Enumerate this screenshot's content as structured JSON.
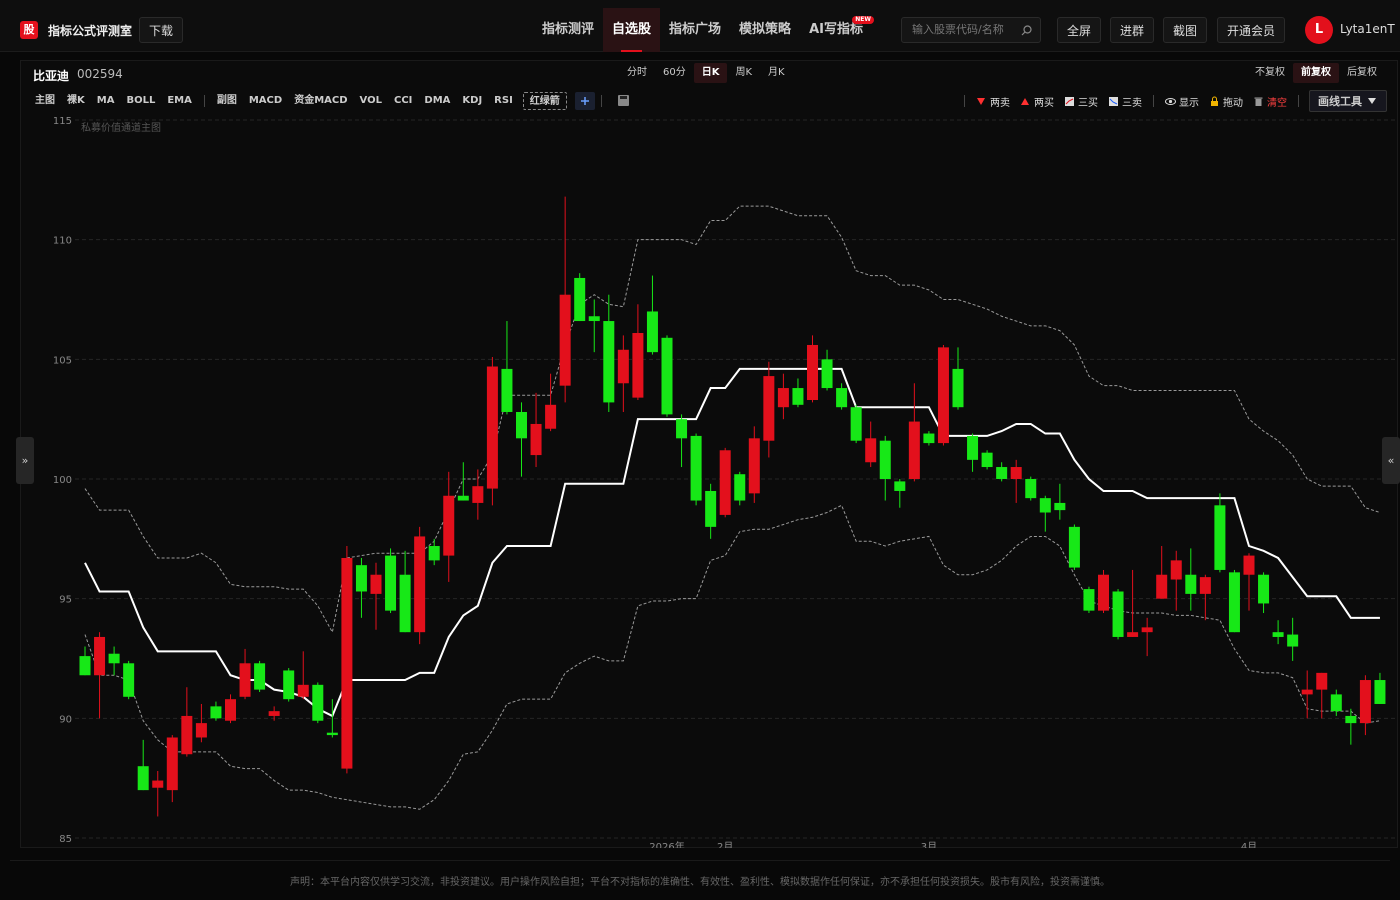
{
  "header": {
    "logo": "股",
    "site_name": "指标公式评测室",
    "download": "下载",
    "nav": [
      "指标测评",
      "自选股",
      "指标广场",
      "模拟策略",
      "AI写指标"
    ],
    "active_nav": 1,
    "new_badge": "NEW",
    "search_placeholder": "输入股票代码/名称",
    "buttons": [
      "全屏",
      "进群",
      "截图",
      "开通会员"
    ],
    "avatar": "L",
    "username": "Lyta1enT"
  },
  "stock": {
    "name": "比亚迪",
    "code": "002594",
    "periods": [
      "分时",
      "60分",
      "日K",
      "周K",
      "月K"
    ],
    "active_period": 2,
    "adjust": [
      "不复权",
      "前复权",
      "后复权"
    ],
    "active_adjust": 1
  },
  "toolbar": {
    "main_label": "主图",
    "main": [
      "裸K",
      "MA",
      "BOLL",
      "EMA"
    ],
    "sub_label": "副图",
    "sub": [
      "MACD",
      "资金MACD",
      "VOL",
      "CCI",
      "DMA",
      "KDJ",
      "RSI",
      "红绿箭"
    ],
    "signals": [
      "两卖",
      "两买",
      "三买",
      "三卖"
    ],
    "controls": [
      "显示",
      "拖动",
      "清空"
    ],
    "draw_tool": "画线工具"
  },
  "side": {
    "left": "»",
    "right": "«"
  },
  "chart_data": {
    "type": "candlestick",
    "title": "私募价值通道主图",
    "categories": [
      null,
      null,
      null,
      null,
      null,
      null,
      null,
      null,
      null,
      null,
      null,
      null,
      null,
      null,
      null,
      null,
      null,
      null,
      null,
      null,
      null,
      null,
      null,
      null,
      null,
      null,
      null,
      null,
      null,
      null,
      null,
      null,
      null,
      null,
      null,
      null,
      null,
      null,
      null,
      null,
      "2026年",
      null,
      null,
      null,
      "2月",
      null,
      null,
      null,
      null,
      null,
      null,
      null,
      null,
      null,
      null,
      null,
      null,
      null,
      "3月",
      null,
      null,
      null,
      null,
      null,
      null,
      null,
      null,
      null,
      null,
      null,
      null,
      null,
      null,
      null,
      null,
      null,
      null,
      null,
      null,
      null,
      "4月",
      null,
      null,
      null,
      null,
      null,
      null,
      null,
      null,
      null
    ],
    "open": [
      92.6,
      91.8,
      92.7,
      92.3,
      88.0,
      87.1,
      87.0,
      88.5,
      89.2,
      90.5,
      89.9,
      90.9,
      92.3,
      90.1,
      92.0,
      90.9,
      91.4,
      89.4,
      87.9,
      96.4,
      95.2,
      96.8,
      96.0,
      93.6,
      97.2,
      96.8,
      99.3,
      99.0,
      99.6,
      104.6,
      102.8,
      101.0,
      102.1,
      103.9,
      108.4,
      106.8,
      106.6,
      104.0,
      103.4,
      107.0,
      105.9,
      102.5,
      101.8,
      99.5,
      98.5,
      100.2,
      99.4,
      101.6,
      103.0,
      103.8,
      103.3,
      105.0,
      103.8,
      103.0,
      100.7,
      101.6,
      99.9,
      100.0,
      101.9,
      101.5,
      104.6,
      101.8,
      101.1,
      100.5,
      100.0,
      100.0,
      99.2,
      99.0,
      98.0,
      95.4,
      94.5,
      95.3,
      93.4,
      93.6,
      95.0,
      95.8,
      96.0,
      95.2,
      98.9,
      96.1,
      96.0,
      96.0,
      93.6,
      93.5,
      91.0,
      91.2,
      91.0,
      90.1,
      89.8,
      91.6
    ],
    "high": [
      93.0,
      93.6,
      93.0,
      92.4,
      89.1,
      87.8,
      89.3,
      91.3,
      90.6,
      90.7,
      91.0,
      92.9,
      92.4,
      90.5,
      92.1,
      92.8,
      91.5,
      90.8,
      97.2,
      96.7,
      96.5,
      97.1,
      97.0,
      98.0,
      97.5,
      100.3,
      100.7,
      100.4,
      105.1,
      106.6,
      103.2,
      103.6,
      104.4,
      111.8,
      108.6,
      107.5,
      107.7,
      106.0,
      107.3,
      108.5,
      106.0,
      102.7,
      101.9,
      99.8,
      101.3,
      100.3,
      102.2,
      104.9,
      104.4,
      104.2,
      106.0,
      105.4,
      104.0,
      103.1,
      102.4,
      101.8,
      100.0,
      104.0,
      102.0,
      105.6,
      105.5,
      101.9,
      101.2,
      100.7,
      100.8,
      100.1,
      99.3,
      99.8,
      98.1,
      95.5,
      96.2,
      95.4,
      96.2,
      94.2,
      97.2,
      97.0,
      97.1,
      96.0,
      99.4,
      96.2,
      96.9,
      96.1,
      94.1,
      94.2,
      92.0,
      91.9,
      91.2,
      90.4,
      91.8,
      91.9
    ],
    "low": [
      91.8,
      90.0,
      91.8,
      90.8,
      87.0,
      85.9,
      86.5,
      88.4,
      89.0,
      89.9,
      89.8,
      90.8,
      91.1,
      89.9,
      90.7,
      90.8,
      89.8,
      89.2,
      87.7,
      94.2,
      93.7,
      94.4,
      93.6,
      93.1,
      96.4,
      95.7,
      99.1,
      98.3,
      98.9,
      102.7,
      100.1,
      100.5,
      102.0,
      103.2,
      106.6,
      105.3,
      102.8,
      102.8,
      103.3,
      105.2,
      102.6,
      100.5,
      98.9,
      97.5,
      98.4,
      98.9,
      99.0,
      100.9,
      102.5,
      103.0,
      103.2,
      103.7,
      102.9,
      101.5,
      100.5,
      99.1,
      98.8,
      99.9,
      101.4,
      101.4,
      102.9,
      100.3,
      100.4,
      99.9,
      99.0,
      99.1,
      97.8,
      98.3,
      96.2,
      94.4,
      94.4,
      93.3,
      93.4,
      92.6,
      95.0,
      94.5,
      94.5,
      94.1,
      96.1,
      93.6,
      94.5,
      94.4,
      93.1,
      92.4,
      90.0,
      90.0,
      90.1,
      88.9,
      89.3,
      90.6
    ],
    "close": [
      91.8,
      93.4,
      92.3,
      90.9,
      87.0,
      87.4,
      89.2,
      90.1,
      89.8,
      90.0,
      90.8,
      92.3,
      91.2,
      90.3,
      90.8,
      91.4,
      89.9,
      89.3,
      96.7,
      95.3,
      96.0,
      94.5,
      93.6,
      97.6,
      96.6,
      99.3,
      99.1,
      99.7,
      104.7,
      102.8,
      101.7,
      102.3,
      103.1,
      107.7,
      106.6,
      106.6,
      103.2,
      105.4,
      106.1,
      105.3,
      102.7,
      101.7,
      99.1,
      98.0,
      101.2,
      99.1,
      101.7,
      104.3,
      103.8,
      103.1,
      105.6,
      103.8,
      103.0,
      101.6,
      101.7,
      100.0,
      99.5,
      102.4,
      101.5,
      105.5,
      103.0,
      100.8,
      100.5,
      100.0,
      100.5,
      99.2,
      98.6,
      98.7,
      96.3,
      94.5,
      96.0,
      93.4,
      93.6,
      93.8,
      96.0,
      96.6,
      95.2,
      95.9,
      96.2,
      93.6,
      96.8,
      94.8,
      93.4,
      93.0,
      91.2,
      91.9,
      90.3,
      89.8,
      91.6,
      90.6
    ],
    "up_color": "#e3101c",
    "down_color": "#17e817",
    "lines": [
      {
        "color": "#ffffff",
        "dashed": false,
        "values": [
          96.5,
          95.3,
          95.3,
          95.3,
          93.8,
          92.8,
          92.8,
          92.8,
          92.8,
          92.8,
          91.8,
          91.6,
          91.6,
          91.2,
          91.1,
          90.9,
          90.4,
          90.1,
          91.6,
          91.6,
          91.6,
          91.6,
          91.6,
          91.9,
          91.9,
          93.4,
          94.3,
          94.7,
          96.5,
          97.2,
          97.2,
          97.2,
          97.2,
          99.8,
          99.8,
          99.8,
          99.8,
          99.8,
          102.5,
          102.5,
          102.5,
          102.5,
          102.5,
          103.8,
          103.8,
          104.6,
          104.6,
          104.6,
          104.6,
          104.6,
          104.6,
          104.6,
          104.6,
          103.0,
          103.0,
          103.0,
          103.0,
          103.0,
          103.0,
          101.8,
          101.8,
          101.8,
          101.8,
          102.0,
          102.3,
          102.3,
          101.9,
          101.9,
          100.8,
          100.0,
          99.5,
          99.5,
          99.5,
          99.2,
          99.2,
          99.2,
          99.2,
          99.2,
          99.2,
          99.2,
          97.2,
          97.0,
          96.7,
          95.9,
          95.1,
          95.1,
          95.1,
          94.2,
          94.2,
          94.2
        ]
      },
      {
        "color": "#9a9a9a",
        "dashed": true,
        "values": [
          99.6,
          98.7,
          98.7,
          98.7,
          97.6,
          96.7,
          96.7,
          96.7,
          96.9,
          96.5,
          95.6,
          95.5,
          95.5,
          95.5,
          95.4,
          95.4,
          94.7,
          93.6,
          96.7,
          96.8,
          96.9,
          96.9,
          96.9,
          96.9,
          97.4,
          98.7,
          100.0,
          100.0,
          101.0,
          103.5,
          103.5,
          103.5,
          103.5,
          105.6,
          107.3,
          107.7,
          107.3,
          107.2,
          110.0,
          110.0,
          110.0,
          110.0,
          109.8,
          110.8,
          110.8,
          111.4,
          111.4,
          111.4,
          111.2,
          111.0,
          111.0,
          111.0,
          110.1,
          108.7,
          108.5,
          108.5,
          108.1,
          108.1,
          107.9,
          107.5,
          107.5,
          107.3,
          107.1,
          106.8,
          106.6,
          106.4,
          106.4,
          106.2,
          105.6,
          104.3,
          103.9,
          103.9,
          103.7,
          103.7,
          103.7,
          103.7,
          103.7,
          103.7,
          103.7,
          103.7,
          102.5,
          102.0,
          101.6,
          101.0,
          100.0,
          99.7,
          99.7,
          99.7,
          98.8,
          98.6
        ]
      },
      {
        "color": "#9a9a9a",
        "dashed": true,
        "values": [
          93.5,
          91.8,
          91.8,
          91.6,
          89.9,
          89.1,
          88.6,
          88.6,
          88.6,
          88.6,
          88.0,
          87.9,
          87.9,
          87.4,
          87.0,
          87.0,
          86.9,
          86.7,
          86.6,
          86.5,
          86.4,
          86.3,
          86.3,
          86.2,
          86.6,
          87.4,
          88.5,
          88.6,
          89.5,
          90.6,
          90.8,
          90.8,
          90.8,
          91.9,
          92.3,
          92.6,
          92.4,
          92.4,
          94.7,
          94.9,
          94.9,
          95.0,
          95.0,
          96.6,
          96.8,
          97.8,
          97.9,
          97.9,
          98.1,
          98.3,
          98.4,
          98.6,
          98.9,
          97.4,
          97.4,
          97.2,
          97.4,
          97.5,
          97.6,
          96.4,
          96.0,
          96.0,
          96.2,
          96.6,
          97.2,
          97.6,
          97.6,
          97.2,
          96.0,
          94.9,
          94.7,
          94.5,
          94.4,
          94.4,
          94.4,
          94.3,
          94.3,
          94.2,
          94.1,
          92.9,
          92.0,
          91.9,
          91.9,
          91.7,
          90.4,
          90.3,
          90.3,
          90.3,
          89.8,
          89.9
        ]
      }
    ],
    "ylim": [
      85,
      115
    ],
    "yticks": [
      85,
      90,
      95,
      100,
      105,
      110,
      115
    ],
    "grid": true
  },
  "footer": {
    "disclaimer": "声明：本平台内容仅供学习交流，非投资建议。用户操作风险自担；平台不对指标的准确性、有效性、盈利性、模拟数据作任何保证，亦不承担任何投资损失。股市有风险，投资需谨慎。"
  }
}
